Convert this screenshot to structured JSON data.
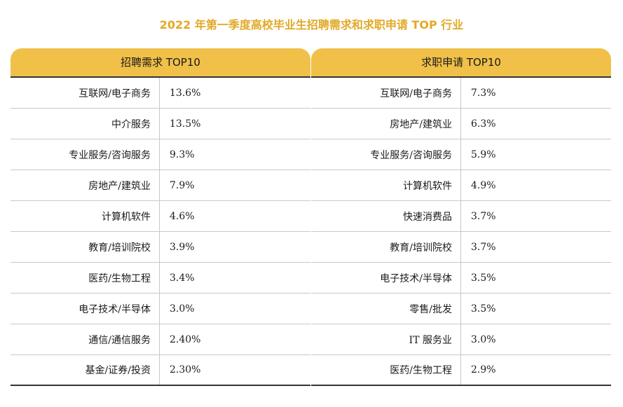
{
  "title": "2022 年第一季度高校毕业生招聘需求和求职申请 TOP 行业",
  "chart_data": {
    "type": "table",
    "tables": [
      {
        "header": "招聘需求 TOP10",
        "rows": [
          {
            "industry": "互联网/电子商务",
            "value": "13.6%"
          },
          {
            "industry": "中介服务",
            "value": "13.5%"
          },
          {
            "industry": "专业服务/咨询服务",
            "value": "9.3%"
          },
          {
            "industry": "房地产/建筑业",
            "value": "7.9%"
          },
          {
            "industry": "计算机软件",
            "value": "4.6%"
          },
          {
            "industry": "教育/培训院校",
            "value": "3.9%"
          },
          {
            "industry": "医药/生物工程",
            "value": "3.4%"
          },
          {
            "industry": "电子技术/半导体",
            "value": "3.0%"
          },
          {
            "industry": "通信/通信服务",
            "value": "2.40%"
          },
          {
            "industry": "基金/证券/投资",
            "value": "2.30%"
          }
        ]
      },
      {
        "header": "求职申请 TOP10",
        "rows": [
          {
            "industry": "互联网/电子商务",
            "value": "7.3%"
          },
          {
            "industry": "房地产/建筑业",
            "value": "6.3%"
          },
          {
            "industry": "专业服务/咨询服务",
            "value": "5.9%"
          },
          {
            "industry": "计算机软件",
            "value": "4.9%"
          },
          {
            "industry": "快速消费品",
            "value": "3.7%"
          },
          {
            "industry": "教育/培训院校",
            "value": "3.7%"
          },
          {
            "industry": "电子技术/半导体",
            "value": "3.5%"
          },
          {
            "industry": "零售/批发",
            "value": "3.5%"
          },
          {
            "industry": "IT 服务业",
            "value": "3.0%"
          },
          {
            "industry": "医药/生物工程",
            "value": "2.9%"
          }
        ]
      }
    ]
  },
  "colors": {
    "title": "#e2a926",
    "header_bg": "#f0c048"
  }
}
